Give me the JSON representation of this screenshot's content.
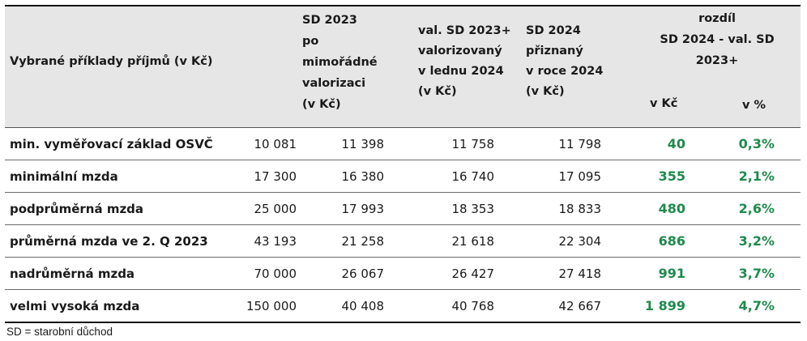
{
  "header": {
    "col_label": "Vybrané příklady příjmů (v Kč)",
    "col_sd2023": "SD 2023\npo\nmimořádné\nvalorizaci\n(v Kč)",
    "col_val": "val. SD 2023+\nvalorizovaný\nv lednu 2024\n(v Kč)",
    "col_sd2024": "SD 2024\npřiznaný\nv roce 2024\n(v Kč)",
    "col_diff": "rozdíl\nSD 2024 - val. SD\n2023+",
    "col_diff_kc": "v Kč",
    "col_diff_pct": "v %"
  },
  "rows": [
    {
      "label": "min. vyměřovací základ OSVČ",
      "income": "10 081",
      "sd2023": "11 398",
      "val": "11 758",
      "sd2024": "11 798",
      "diff_kc": "40",
      "diff_pct": "0,3%"
    },
    {
      "label": "minimální mzda",
      "income": "17 300",
      "sd2023": "16 380",
      "val": "16 740",
      "sd2024": "17 095",
      "diff_kc": "355",
      "diff_pct": "2,1%"
    },
    {
      "label": "podprůměrná mzda",
      "income": "25 000",
      "sd2023": "17 993",
      "val": "18 353",
      "sd2024": "18 833",
      "diff_kc": "480",
      "diff_pct": "2,6%"
    },
    {
      "label": "průměrná mzda ve 2. Q 2023",
      "income": "43 193",
      "sd2023": "21 258",
      "val": "21 618",
      "sd2024": "22 304",
      "diff_kc": "686",
      "diff_pct": "3,2%"
    },
    {
      "label": "nadrůměrná mzda",
      "income": "70 000",
      "sd2023": "26 067",
      "val": "26 427",
      "sd2024": "27 418",
      "diff_kc": "991",
      "diff_pct": "3,7%"
    },
    {
      "label": "velmi vysoká mzda",
      "income": "150 000",
      "sd2023": "40 408",
      "val": "40 768",
      "sd2024": "42 667",
      "diff_kc": "1 899",
      "diff_pct": "4,7%"
    }
  ],
  "footnote": "SD = starobní důchod",
  "colors": {
    "header_bg": "#e6e6e6",
    "positive": "#1f8a4c"
  }
}
